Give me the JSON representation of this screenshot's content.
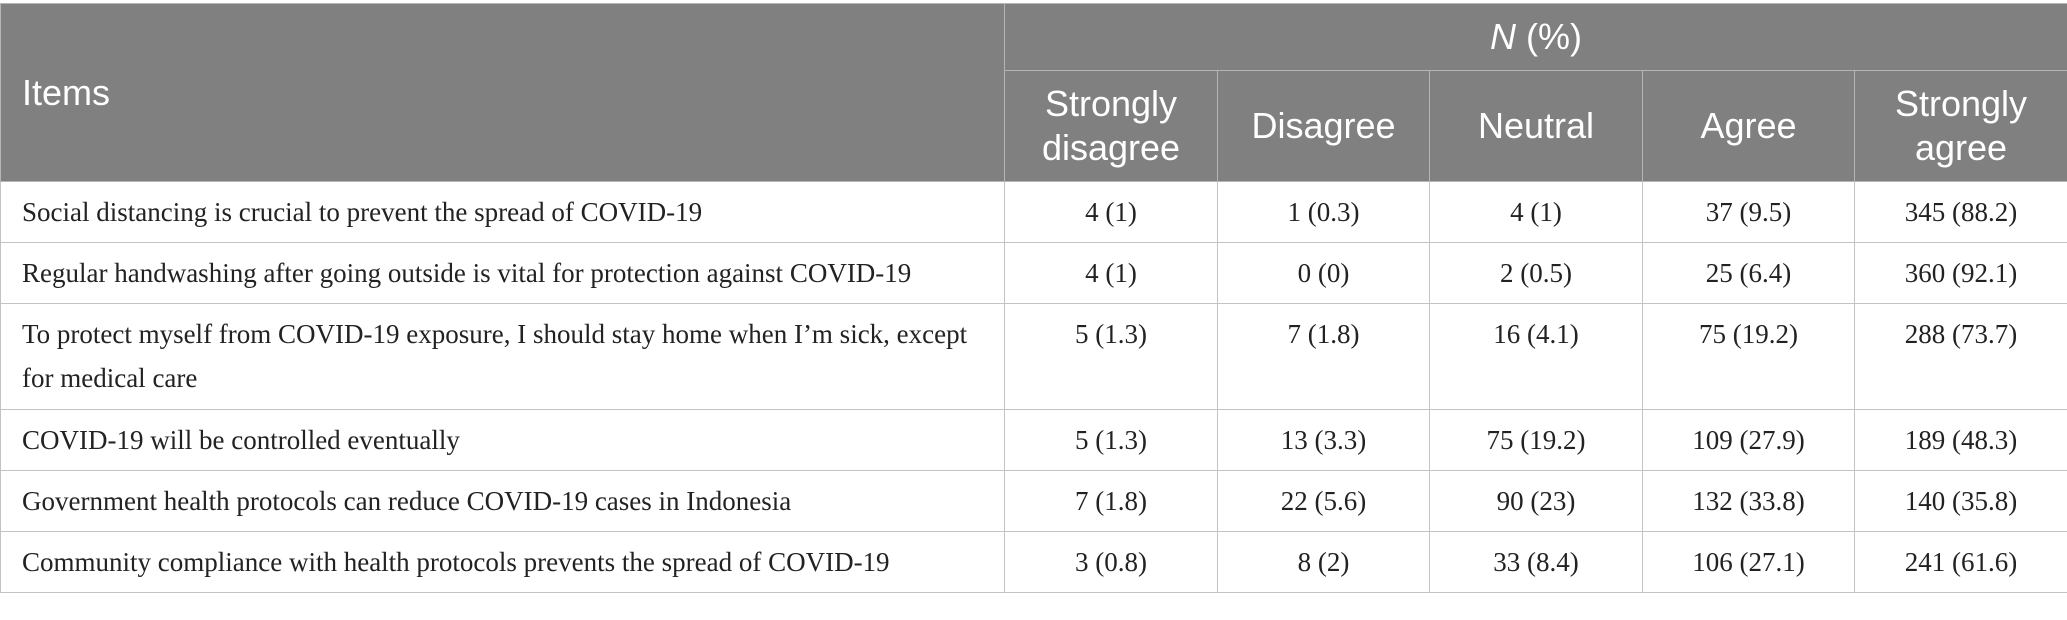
{
  "header": {
    "items_label": "Items",
    "n_label": "N",
    "pct_label": "(%)",
    "columns": [
      "Strongly disagree",
      "Disagree",
      "Neutral",
      "Agree",
      "Strongly agree"
    ]
  },
  "rows": [
    {
      "item": "Social distancing is crucial to prevent the spread of COVID-19",
      "values": [
        "4 (1)",
        "1 (0.3)",
        "4 (1)",
        "37 (9.5)",
        "345 (88.2)"
      ]
    },
    {
      "item": "Regular handwashing after going outside is vital for protection against COVID-19",
      "values": [
        "4 (1)",
        "0 (0)",
        "2 (0.5)",
        "25 (6.4)",
        "360 (92.1)"
      ]
    },
    {
      "item": "To protect myself from COVID-19 exposure, I should stay home when I’m sick, except for medical care",
      "values": [
        "5 (1.3)",
        "7 (1.8)",
        "16 (4.1)",
        "75 (19.2)",
        "288 (73.7)"
      ]
    },
    {
      "item": "COVID-19 will be controlled eventually",
      "values": [
        "5 (1.3)",
        "13 (3.3)",
        "75 (19.2)",
        "109 (27.9)",
        "189 (48.3)"
      ]
    },
    {
      "item": "Government health protocols can reduce COVID-19 cases in Indonesia",
      "values": [
        "7 (1.8)",
        "22 (5.6)",
        "90 (23)",
        "132 (33.8)",
        "140 (35.8)"
      ]
    },
    {
      "item": "Community compliance with health protocols prevents the spread of COVID-19",
      "values": [
        "3 (0.8)",
        "8 (2)",
        "33 (8.4)",
        "106 (27.1)",
        "241 (61.6)"
      ]
    }
  ],
  "colors": {
    "header_bg": "#808080",
    "header_text": "#ffffff",
    "grid": "#c3c3c3"
  }
}
